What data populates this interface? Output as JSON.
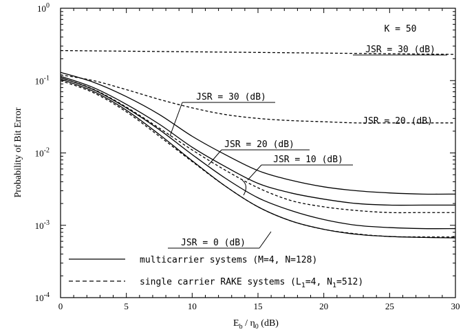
{
  "chart_data": {
    "type": "line",
    "title": "",
    "xlabel": "E_b / η_0 (dB)",
    "xlabel_parts": {
      "main": "E",
      "sub1": "b",
      "mid": " / η",
      "sub2": "0",
      "tail": " (dB)"
    },
    "ylabel": "Probability of Bit Error",
    "xlim": [
      0,
      30
    ],
    "ylim": [
      0.0001,
      1
    ],
    "yscale": "log",
    "grid": false,
    "x_ticks": [
      0,
      5,
      10,
      15,
      20,
      25,
      30
    ],
    "x_tick_labels": [
      "0",
      "5",
      "10",
      "15",
      "20",
      "25",
      "30"
    ],
    "y_ticks": [
      {
        "value": 1,
        "base": "10",
        "exp": "0"
      },
      {
        "value": 0.1,
        "base": "10",
        "exp": "-1"
      },
      {
        "value": 0.01,
        "base": "10",
        "exp": "-2"
      },
      {
        "value": 0.001,
        "base": "10",
        "exp": "-3"
      },
      {
        "value": 0.0001,
        "base": "10",
        "exp": "-4"
      }
    ],
    "annotations": {
      "k_label": "K = 50",
      "jsr_30_mc": "JSR = 30 (dB)",
      "jsr_20_mc": "JSR = 20 (dB)",
      "jsr_10_mc": "JSR = 10 (dB)",
      "jsr_0_mc": "JSR = 0 (dB)",
      "jsr_30_sc": "JSR = 30 (dB)",
      "jsr_20_sc": "JSR = 20 (dB)"
    },
    "legend": {
      "placement": "bottom-left",
      "items": [
        {
          "style": "solid",
          "label": "multicarrier systems  (M=4, N=128)"
        },
        {
          "style": "dashed",
          "label_main": "single carrier RAKE systems  (L",
          "sub1": "1",
          "label_mid": "=4, N",
          "sub2": "1",
          "label_tail": "=512)"
        }
      ]
    },
    "series": [
      {
        "style": "solid",
        "jsr": "30",
        "x": [
          0,
          2.5,
          5,
          7.5,
          10,
          12.5,
          15,
          17.5,
          20,
          22.5,
          25,
          27.5,
          30
        ],
        "y": [
          0.13,
          0.095,
          0.06,
          0.034,
          0.017,
          0.0095,
          0.0057,
          0.0042,
          0.0034,
          0.003,
          0.0028,
          0.0027,
          0.0027
        ]
      },
      {
        "style": "solid",
        "jsr": "20",
        "x": [
          0,
          2.5,
          5,
          7.5,
          10,
          12.5,
          15,
          17.5,
          20,
          22.5,
          25,
          27.5,
          30
        ],
        "y": [
          0.115,
          0.08,
          0.047,
          0.025,
          0.012,
          0.0065,
          0.0038,
          0.0028,
          0.0023,
          0.002,
          0.0019,
          0.0019,
          0.0019
        ]
      },
      {
        "style": "solid",
        "jsr": "10",
        "x": [
          0,
          2.5,
          5,
          7.5,
          10,
          12.5,
          15,
          17.5,
          20,
          22.5,
          25,
          27.5,
          30
        ],
        "y": [
          0.11,
          0.075,
          0.042,
          0.021,
          0.0095,
          0.0045,
          0.0024,
          0.0016,
          0.0012,
          0.001,
          0.00093,
          0.0009,
          0.0009
        ]
      },
      {
        "style": "solid",
        "jsr": "0",
        "x": [
          0,
          2.5,
          5,
          7.5,
          10,
          12.5,
          15,
          17.5,
          20,
          22.5,
          25,
          27.5,
          30
        ],
        "y": [
          0.105,
          0.071,
          0.039,
          0.018,
          0.0078,
          0.0035,
          0.0018,
          0.00115,
          0.00088,
          0.00075,
          0.0007,
          0.00068,
          0.00067
        ]
      },
      {
        "style": "dashed",
        "jsr": "30",
        "x": [
          0,
          5,
          10,
          15,
          20,
          25,
          30
        ],
        "y": [
          0.26,
          0.255,
          0.25,
          0.245,
          0.24,
          0.235,
          0.23
        ]
      },
      {
        "style": "dashed",
        "jsr": "20",
        "x": [
          0,
          2.5,
          5,
          7.5,
          10,
          12.5,
          15,
          17.5,
          20,
          22.5,
          25,
          27.5,
          30
        ],
        "y": [
          0.12,
          0.1,
          0.075,
          0.055,
          0.042,
          0.034,
          0.03,
          0.028,
          0.027,
          0.026,
          0.026,
          0.026,
          0.026
        ]
      },
      {
        "style": "dashed",
        "jsr": "10",
        "x": [
          0,
          2.5,
          5,
          7.5,
          10,
          12.5,
          15,
          17.5,
          20,
          22.5,
          25,
          27.5,
          30
        ],
        "y": [
          0.11,
          0.076,
          0.043,
          0.022,
          0.011,
          0.0058,
          0.0033,
          0.0022,
          0.0018,
          0.0016,
          0.0015,
          0.0015,
          0.0015
        ]
      },
      {
        "style": "dashed",
        "jsr": "0",
        "x": [
          0,
          2.5,
          5,
          7.5,
          10,
          12.5,
          15,
          17.5,
          20,
          22.5,
          25,
          27.5,
          30
        ],
        "y": [
          0.1,
          0.068,
          0.037,
          0.017,
          0.0076,
          0.0035,
          0.0018,
          0.00115,
          0.00088,
          0.00076,
          0.0007,
          0.00069,
          0.00069
        ]
      }
    ]
  }
}
